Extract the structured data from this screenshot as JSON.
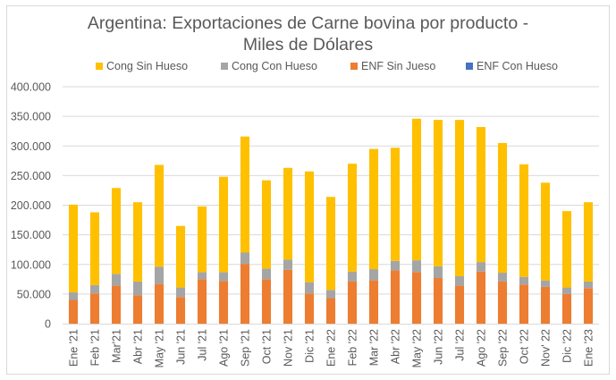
{
  "chart_data": {
    "type": "bar",
    "stacked": true,
    "title": "Argentina: Exportaciones de Carne bovina por producto - Miles de Dólares",
    "title_lines": [
      "Argentina: Exportaciones de Carne bovina por producto -",
      "Miles de Dólares"
    ],
    "xlabel": "",
    "ylabel": "",
    "ylim": [
      0,
      400000
    ],
    "yticks": [
      0,
      50000,
      100000,
      150000,
      200000,
      250000,
      300000,
      350000,
      400000
    ],
    "ytick_labels": [
      "0",
      "50.000",
      "100.000",
      "150.000",
      "200.000",
      "250.000",
      "300.000",
      "350.000",
      "400.000"
    ],
    "grid": true,
    "legend_position": "top",
    "categories": [
      "Ene '21",
      "Feb '21",
      "Mar'21",
      "Abr '21",
      "May '21",
      "Jun '21",
      "Jul '21",
      "Ago '21",
      "Sep '21",
      "Oct '21",
      "Nov '21",
      "Dic '21",
      "Ene '22",
      "Feb '22",
      "Mar '22",
      "Abr '22",
      "May '22",
      "Jun '22",
      "Jul '22",
      "Ago '22",
      "Sep '22",
      "Oct '22",
      "Nov' 22",
      "Dic '22",
      "Ene '23"
    ],
    "series": [
      {
        "name": "ENF Sin Jueso",
        "color": "#ED7D31",
        "values": [
          40000,
          51000,
          64000,
          48000,
          67000,
          45000,
          75000,
          72000,
          101000,
          75000,
          91000,
          51000,
          43000,
          71000,
          73000,
          90000,
          87000,
          77000,
          64000,
          88000,
          71000,
          66000,
          62000,
          50000,
          60000
        ]
      },
      {
        "name": "Cong Con Hueso",
        "color": "#A5A5A5",
        "values": [
          13000,
          14000,
          20000,
          23000,
          29000,
          16000,
          12000,
          15000,
          19000,
          18000,
          17000,
          19000,
          14000,
          17000,
          19000,
          16000,
          20000,
          20000,
          16000,
          16000,
          15000,
          13000,
          11000,
          11000,
          11000
        ]
      },
      {
        "name": "Cong Sin Hueso",
        "color": "#FFC000",
        "values": [
          148000,
          123000,
          145000,
          134000,
          172000,
          104000,
          111000,
          161000,
          196000,
          149000,
          155000,
          187000,
          157000,
          182000,
          203000,
          191000,
          239000,
          247000,
          264000,
          228000,
          219000,
          190000,
          165000,
          129000,
          134000
        ]
      },
      {
        "name": "ENF Con Hueso",
        "color": "#4472C4",
        "values": [
          0,
          0,
          0,
          0,
          0,
          0,
          0,
          0,
          0,
          0,
          0,
          0,
          0,
          0,
          0,
          0,
          0,
          0,
          0,
          0,
          0,
          0,
          0,
          0,
          0
        ]
      }
    ],
    "legend": [
      {
        "name": "Cong Sin Hueso",
        "color": "#FFC000"
      },
      {
        "name": "Cong Con Hueso",
        "color": "#A5A5A5"
      },
      {
        "name": "ENF Sin Jueso",
        "color": "#ED7D31"
      },
      {
        "name": "ENF Con Hueso",
        "color": "#4472C4"
      }
    ]
  }
}
